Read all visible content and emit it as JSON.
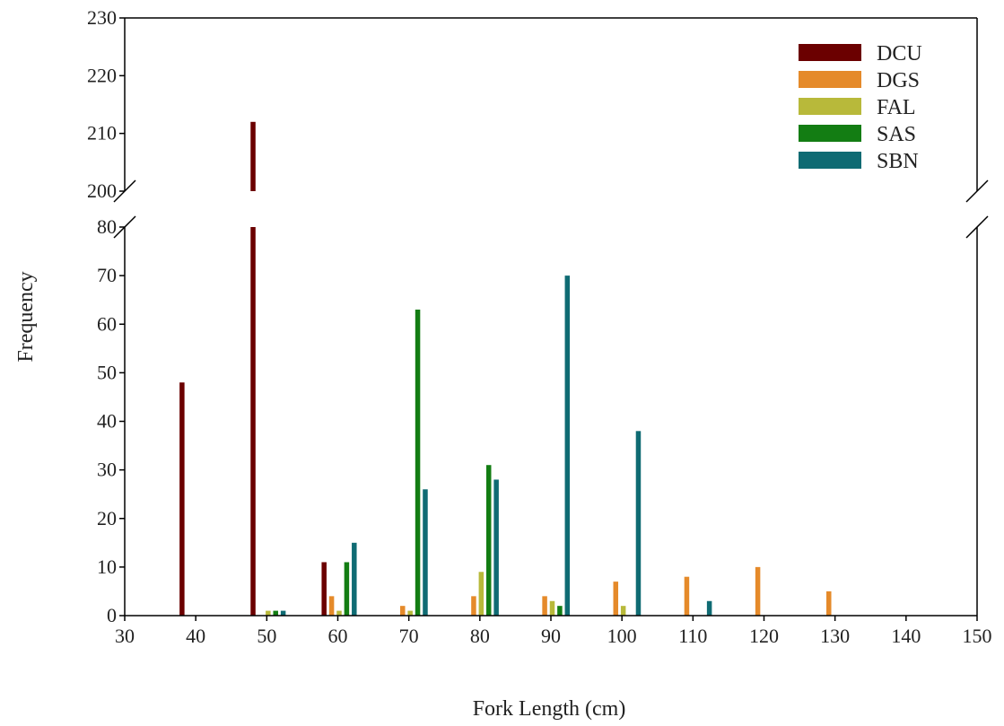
{
  "chart_data": {
    "type": "bar",
    "xlabel": "Fork Length (cm)",
    "ylabel": "Frequency",
    "xlim": [
      30,
      150
    ],
    "x_ticks": [
      30,
      40,
      50,
      60,
      70,
      80,
      90,
      100,
      110,
      120,
      130,
      140,
      150
    ],
    "y_axis_break": {
      "lower_range": [
        0,
        80
      ],
      "upper_range": [
        200,
        230
      ]
    },
    "y_ticks_lower": [
      0,
      10,
      20,
      30,
      40,
      50,
      60,
      70,
      80
    ],
    "y_ticks_upper": [
      200,
      210,
      220,
      230
    ],
    "legend_position": "top-right",
    "grid": false,
    "x": [
      40,
      50,
      60,
      70,
      80,
      90,
      100,
      110,
      120,
      130
    ],
    "series": [
      {
        "name": "DCU",
        "color": "#6b0000",
        "values": [
          48,
          212,
          11,
          0,
          0,
          0,
          0,
          0,
          0,
          0
        ]
      },
      {
        "name": "DGS",
        "color": "#e58a2a",
        "values": [
          0,
          0,
          4,
          2,
          4,
          4,
          7,
          8,
          10,
          5
        ]
      },
      {
        "name": "FAL",
        "color": "#b8b93a",
        "values": [
          0,
          1,
          1,
          1,
          9,
          3,
          2,
          0,
          0,
          0
        ]
      },
      {
        "name": "SAS",
        "color": "#137d13",
        "values": [
          0,
          1,
          11,
          63,
          31,
          2,
          0,
          0,
          0,
          0
        ]
      },
      {
        "name": "SBN",
        "color": "#0f6b73",
        "values": [
          0,
          1,
          15,
          26,
          28,
          70,
          38,
          3,
          0,
          0
        ]
      }
    ]
  }
}
